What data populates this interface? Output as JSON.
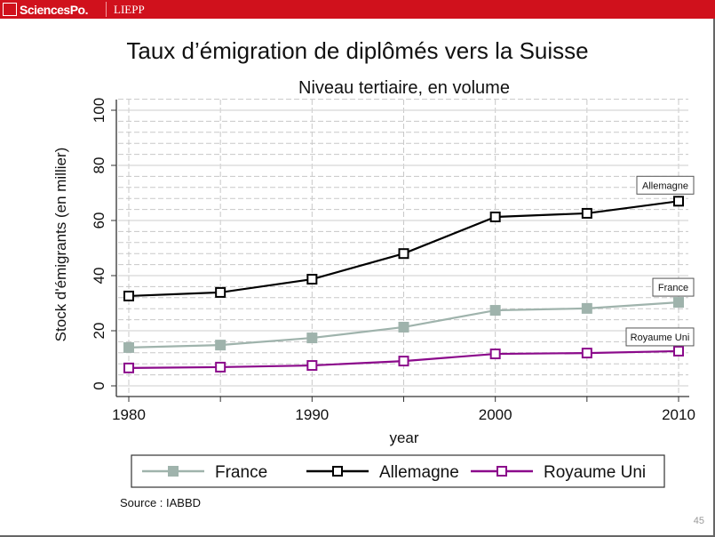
{
  "header": {
    "brand": "SciencesPo.",
    "unit": "LIEPP"
  },
  "slide": {
    "title": "Taux d’émigration de diplômés vers la Suisse",
    "source": "Source : IABBD",
    "page_number": "45"
  },
  "chart_data": {
    "type": "line",
    "title": "Niveau tertiaire, en volume",
    "xlabel": "year",
    "ylabel": "Stock d'émigrants (en millier)",
    "x": [
      1980,
      1985,
      1990,
      1995,
      2000,
      2005,
      2010
    ],
    "xticks": [
      "1980",
      "1990",
      "2000",
      "2010"
    ],
    "yticks": [
      "0",
      "20",
      "40",
      "60",
      "80",
      "100"
    ],
    "ylim": [
      0,
      100
    ],
    "grid": true,
    "legend_position": "bottom",
    "series": [
      {
        "name": "France",
        "color": "#9fb3ac",
        "marker": "filled-square",
        "end_label": "France",
        "values": [
          13.9,
          14.8,
          17.4,
          21.3,
          27.4,
          28.1,
          30.3
        ]
      },
      {
        "name": "Allemagne",
        "color": "#000000",
        "marker": "hollow-square",
        "end_label": "Allemagne",
        "values": [
          32.6,
          33.9,
          38.7,
          48.0,
          61.3,
          62.6,
          67.0
        ]
      },
      {
        "name": "Royaume Uni",
        "color": "#8b0a8b",
        "marker": "hollow-square",
        "end_label": "Royaume Uni",
        "values": [
          6.5,
          6.8,
          7.4,
          9.0,
          11.6,
          11.9,
          12.6
        ]
      }
    ]
  }
}
